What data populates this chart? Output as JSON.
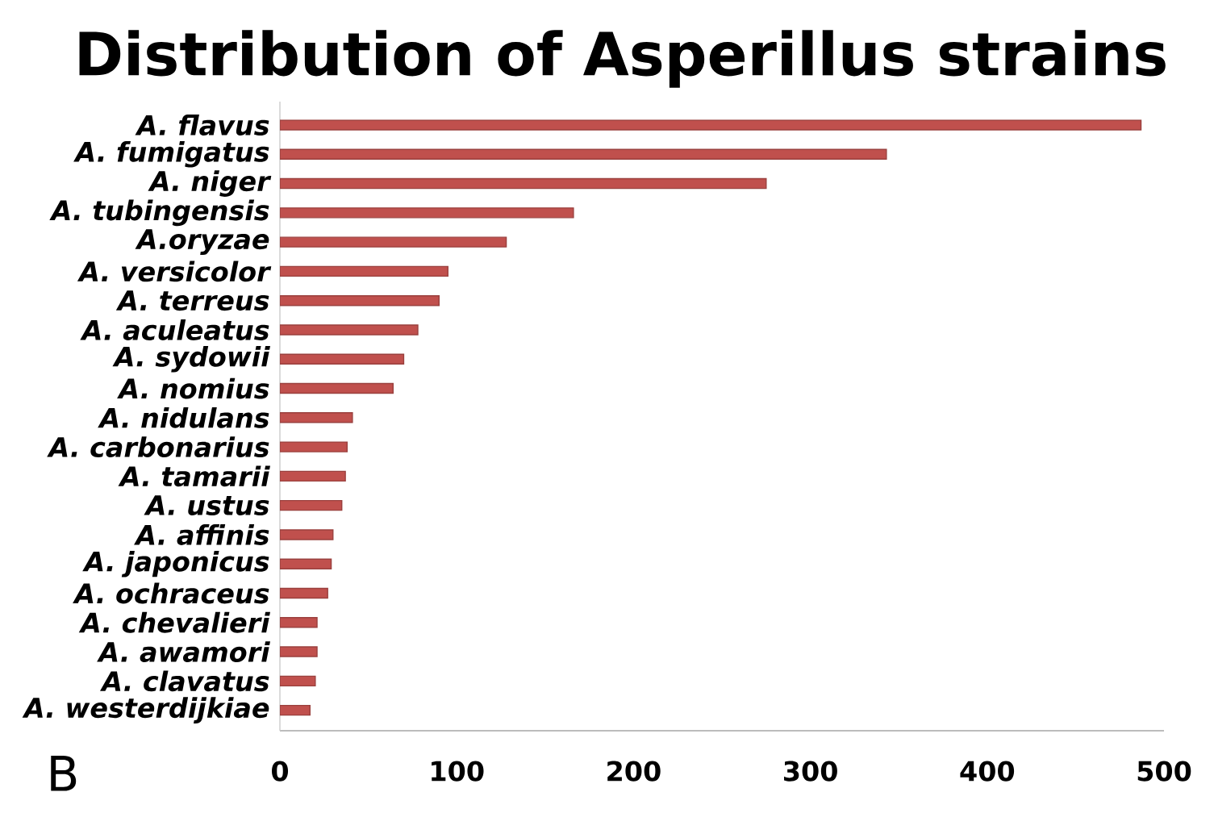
{
  "chart_data": {
    "type": "bar",
    "orientation": "horizontal",
    "title": "Distribution of Asperillus strains",
    "categories": [
      "A. flavus",
      "A. fumigatus",
      "A. niger",
      "A. tubingensis",
      "A.oryzae",
      "A. versicolor",
      "A. terreus",
      "A. aculeatus",
      "A. sydowii",
      "A. nomius",
      "A. nidulans",
      "A. carbonarius",
      "A. tamarii",
      "A. ustus",
      "A. affinis",
      "A. japonicus",
      "A. ochraceus",
      "A. chevalieri",
      "A. awamori",
      "A. clavatus",
      "A. westerdijkiae"
    ],
    "values": [
      487,
      343,
      275,
      166,
      128,
      95,
      90,
      78,
      70,
      64,
      41,
      38,
      37,
      35,
      30,
      29,
      27,
      21,
      21,
      20,
      17
    ],
    "color": "#c0504d",
    "xlim": [
      0,
      500
    ],
    "xticks": [
      0,
      100,
      200,
      300,
      400,
      500
    ],
    "annotations": [
      "B"
    ]
  }
}
